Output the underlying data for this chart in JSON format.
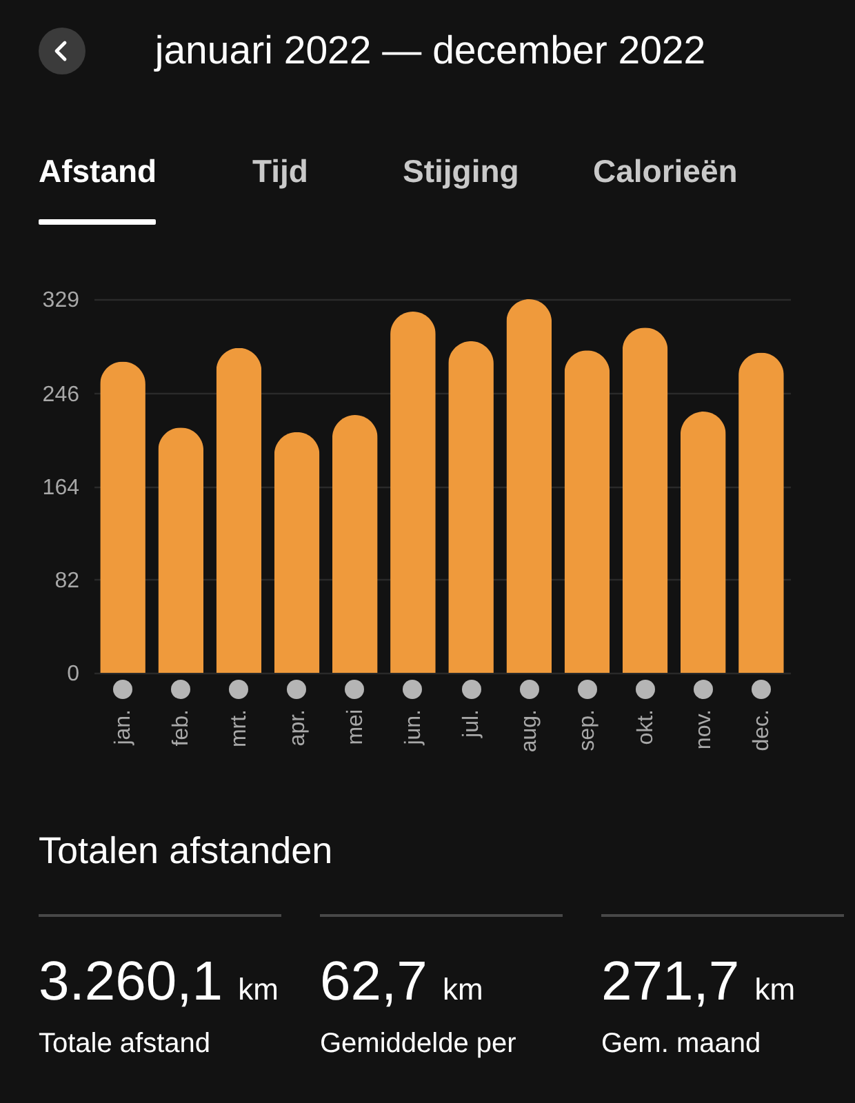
{
  "chart_data": {
    "type": "bar",
    "title": "januari 2022 — december 2022",
    "categories": [
      "jan.",
      "feb.",
      "mrt.",
      "apr.",
      "mei",
      "jun.",
      "jul.",
      "aug.",
      "sep.",
      "okt.",
      "nov.",
      "dec."
    ],
    "values": [
      274,
      216,
      286,
      212,
      227,
      318,
      292,
      329,
      284,
      304,
      230,
      282
    ],
    "color": "#ef9a3c",
    "ylim": [
      0,
      329
    ],
    "yticks": [
      0,
      82,
      164,
      246,
      329
    ],
    "grid": "y",
    "annotations": [
      "Afstand",
      "Tijd",
      "Stijging",
      "Calorieën",
      "Totalen afstanden",
      "3.260,1 km",
      "Totale afstand",
      "62,7 km",
      "Gemiddelde per",
      "271,7 km",
      "Gem. maand"
    ]
  }
}
